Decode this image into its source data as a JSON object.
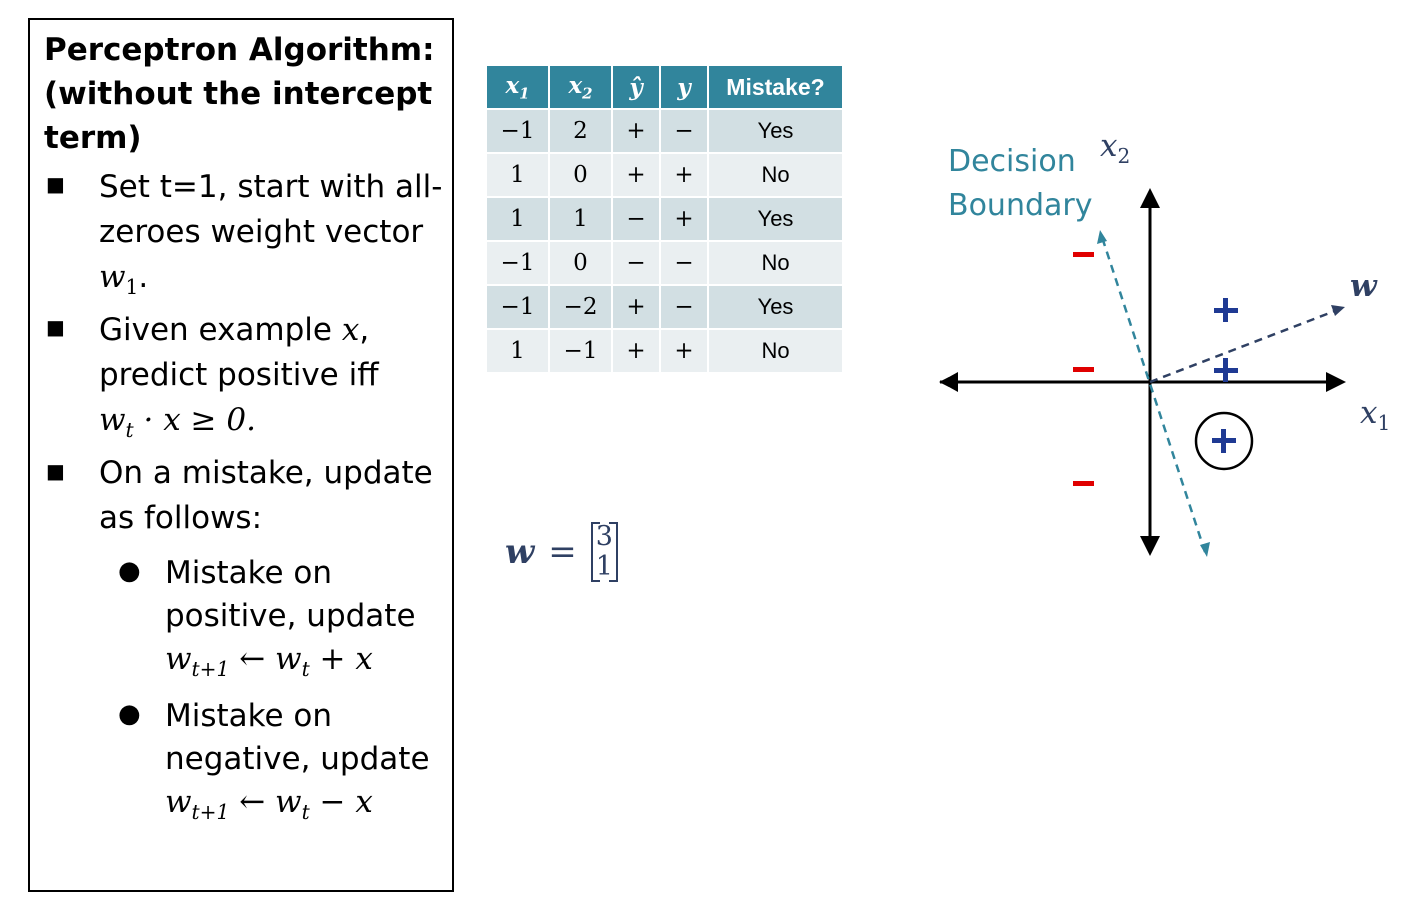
{
  "algorithm": {
    "title_line1": "Perceptron  Algorithm:",
    "title_line2": "(without  the  intercept",
    "title_line3": "term)",
    "bullet1_line1": "Set t=1, start with all-",
    "bullet1_line2": "zeroes weight vector",
    "bullet1_math": "w",
    "bullet1_math_sub": "1",
    "bullet2_line1_text": "Given example ",
    "bullet2_line1_math": "x",
    "bullet2_line2": "predict positive iff",
    "bullet2_math": "w",
    "bullet2_math_sub": "t",
    "bullet2_math_rest": " · x ≥ 0.",
    "bullet3_line1": "On a mistake, update",
    "bullet3_line2": "as follows:",
    "sub1_line1": "Mistake on",
    "sub1_line2": "positive, update",
    "sub1_math": "w_{t+1} ← w_t + x",
    "sub2_line1": "Mistake on",
    "sub2_line2": "negative, update",
    "sub2_math": "w_{t+1} ← w_t − x"
  },
  "table": {
    "headers": [
      "x1",
      "x2",
      "ŷ",
      "y",
      "Mistake?"
    ],
    "rows": [
      [
        "−1",
        "2",
        "+",
        "−",
        "Yes"
      ],
      [
        "1",
        "0",
        "+",
        "+",
        "No"
      ],
      [
        "1",
        "1",
        "−",
        "+",
        "Yes"
      ],
      [
        "−1",
        "0",
        "−",
        "−",
        "No"
      ],
      [
        "−1",
        "−2",
        "+",
        "−",
        "Yes"
      ],
      [
        "1",
        "−1",
        "+",
        "+",
        "No"
      ]
    ]
  },
  "weight_vector": {
    "label": "w",
    "equals": "=",
    "top": "3",
    "bottom": "1"
  },
  "plot": {
    "decision_boundary_line1": "Decision",
    "decision_boundary_line2": "Boundary",
    "x1_label": "x",
    "x1_sub": "1",
    "x2_label": "x",
    "x2_sub": "2",
    "w_label": "w",
    "plus": "+",
    "minus": "−",
    "colors": {
      "axis": "#000000",
      "boundary": "#31859c",
      "w_arrow": "#2f4063",
      "plus": "#1f3a93",
      "minus": "#e00000"
    }
  }
}
